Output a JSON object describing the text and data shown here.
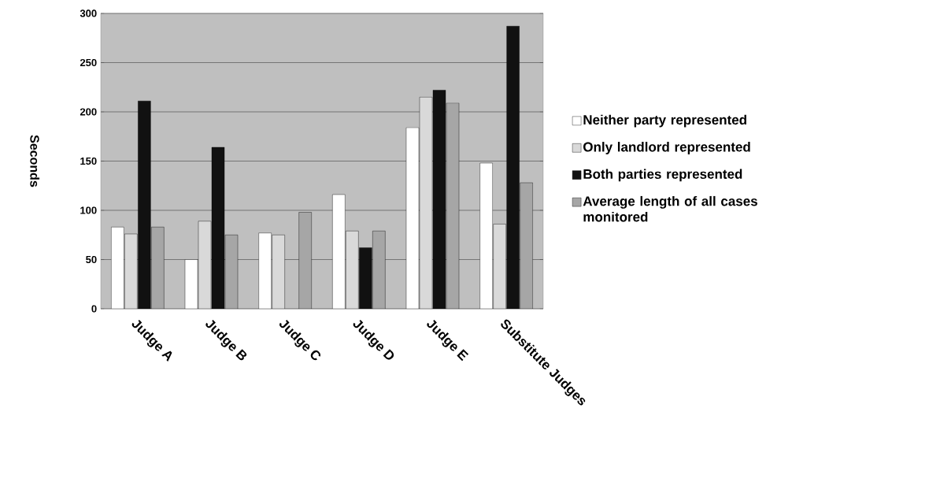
{
  "chart_data": {
    "type": "bar",
    "ylabel": "Seconds",
    "categories": [
      "Judge A",
      "Judge B",
      "Judge C",
      "Judge D",
      "Judge E",
      "Substitute Judges"
    ],
    "series": [
      {
        "name": "Neither party represented",
        "color": "#ffffff",
        "values": [
          83,
          50,
          77,
          116,
          184,
          148
        ]
      },
      {
        "name": "Only landlord represented",
        "color": "#d9d9d9",
        "values": [
          76,
          89,
          75,
          79,
          215,
          86
        ]
      },
      {
        "name": "Both parties represented",
        "color": "#111111",
        "values": [
          211,
          164,
          null,
          62,
          222,
          287
        ]
      },
      {
        "name": "Average length of all cases monitored",
        "color": "#a6a6a6",
        "values": [
          83,
          75,
          98,
          79,
          209,
          128
        ]
      }
    ],
    "ylim": [
      0,
      300
    ],
    "yticks": [
      0,
      50,
      100,
      150,
      200,
      250,
      300
    ],
    "grid": "y",
    "legend": "right"
  }
}
